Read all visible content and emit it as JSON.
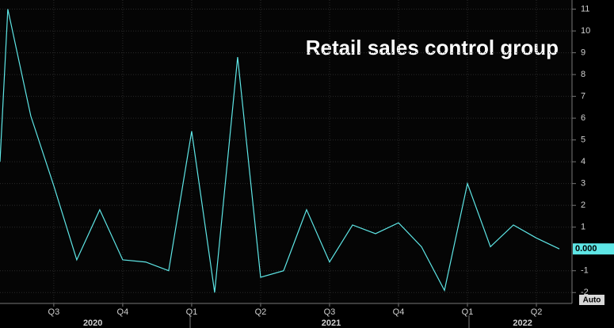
{
  "chart_data": {
    "type": "line",
    "title": "Retail sales control group",
    "x": [
      -0.34,
      0,
      1,
      2,
      3,
      4,
      5,
      6,
      7,
      8,
      9,
      10,
      11,
      12,
      13,
      14,
      15,
      16,
      17,
      18,
      19,
      20,
      21,
      22,
      23,
      24
    ],
    "series": [
      {
        "color": "#5ee6e6",
        "values": [
          4.0,
          11.0,
          6.1,
          2.9,
          -0.5,
          1.8,
          -0.5,
          -0.6,
          -1.0,
          5.4,
          -2.0,
          8.8,
          -1.3,
          -1.0,
          1.8,
          -0.6,
          1.1,
          0.7,
          1.2,
          0.1,
          -1.9,
          3.0,
          0.1,
          1.1,
          0.5,
          0.0
        ]
      }
    ],
    "xlim": [
      -0.34,
      24.55
    ],
    "xticks": [
      {
        "value": 2,
        "label": "Q3"
      },
      {
        "value": 5,
        "label": "Q4"
      },
      {
        "value": 8,
        "label": "Q1"
      },
      {
        "value": 11,
        "label": "Q2"
      },
      {
        "value": 14,
        "label": "Q3"
      },
      {
        "value": 17,
        "label": "Q4"
      },
      {
        "value": 20,
        "label": "Q1"
      },
      {
        "value": 23,
        "label": "Q2"
      }
    ],
    "year_ticks": [
      {
        "value": 3.7,
        "label": "2020"
      },
      {
        "value": 14.07,
        "label": "2021"
      },
      {
        "value": 22.4,
        "label": "2022"
      }
    ],
    "ylim": [
      -2.5,
      11.42
    ],
    "yticks": [
      11,
      10,
      9,
      8,
      7,
      6,
      5,
      4,
      3,
      2,
      1,
      -1,
      -2
    ],
    "last_value": {
      "value": 0,
      "label": "0.000"
    },
    "scale_mode": "Auto",
    "grid": true
  }
}
